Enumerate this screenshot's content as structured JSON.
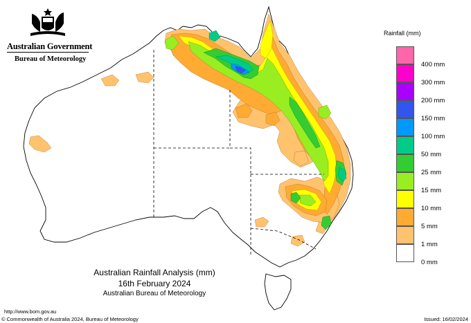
{
  "header": {
    "agency": "Australian Government",
    "bureau": "Bureau of Meteorology"
  },
  "map": {
    "title": "Australian Rainfall Analysis (mm)",
    "date": "16th February 2024",
    "credit": "Australian Bureau of Meteorology"
  },
  "legend": {
    "title": "Rainfall (mm)",
    "items": [
      {
        "label": "",
        "color": "#ff66aa"
      },
      {
        "label": "400 mm",
        "color": "#ff00cc"
      },
      {
        "label": "300 mm",
        "color": "#aa00ff"
      },
      {
        "label": "200 mm",
        "color": "#3355ee"
      },
      {
        "label": "150 mm",
        "color": "#0099ff"
      },
      {
        "label": "100 mm",
        "color": "#00cc88"
      },
      {
        "label": "50 mm",
        "color": "#33cc33"
      },
      {
        "label": "25 mm",
        "color": "#99ee22"
      },
      {
        "label": "15 mm",
        "color": "#ffff00"
      },
      {
        "label": "10 mm",
        "color": "#ffaa33"
      },
      {
        "label": "5 mm",
        "color": "#ffc36e"
      },
      {
        "label": "1 mm",
        "color": "#ffffff"
      },
      {
        "label": "0 mm",
        "color": null
      }
    ]
  },
  "footer": {
    "url": "http://www.bom.gov.au",
    "copyright": "© Commonwealth of Australia 2024, Bureau of Meteorology",
    "issued": "Issued: 16/02/2024"
  }
}
